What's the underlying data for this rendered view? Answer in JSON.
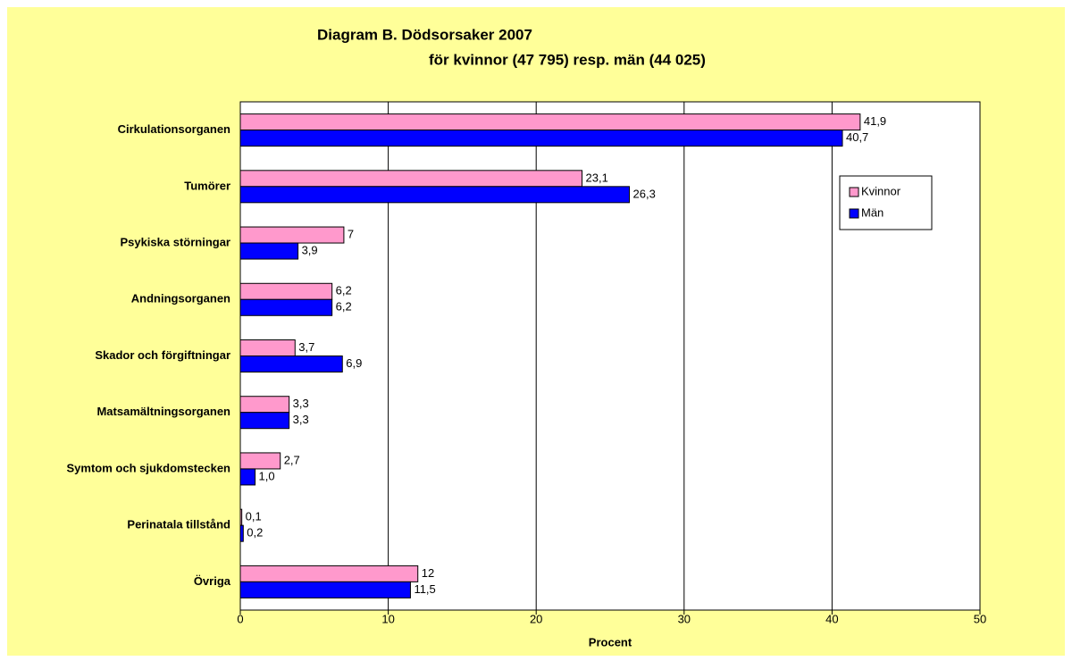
{
  "chart_data": {
    "type": "hbar",
    "title": "Diagram B.  Dödsorsaker 2007",
    "subtitle": "för kvinnor (47 795) resp. män (44 025)",
    "x_label": "Procent",
    "categories": [
      "Cirkulationsorganen",
      "Tumörer",
      "Psykiska störningar",
      "Andningsorganen",
      "Skador och förgiftningar",
      "Matsamältningsorganen",
      "Symtom och sjukdomstecken",
      "Perinatala tillstånd",
      "Övriga"
    ],
    "series": [
      {
        "name": "Kvinnor",
        "color": "#ff99cc",
        "values": [
          41.9,
          23.1,
          7,
          6.2,
          3.7,
          3.3,
          2.7,
          0.1,
          12
        ],
        "value_labels": [
          "41,9",
          "23,1",
          "7",
          "6,2",
          "3,7",
          "3,3",
          "2,7",
          "0,1",
          "12"
        ]
      },
      {
        "name": "Män",
        "color": "#0000ff",
        "values": [
          40.7,
          26.3,
          3.9,
          6.2,
          6.9,
          3.3,
          1.0,
          0.2,
          11.5
        ],
        "value_labels": [
          "40,7",
          "26,3",
          "3,9",
          "6,2",
          "6,9",
          "3,3",
          "1,0",
          "0,2",
          "11,5"
        ]
      }
    ],
    "xlim": [
      0,
      50
    ],
    "xticks": [
      0,
      10,
      20,
      30,
      40,
      50
    ],
    "grid": true
  }
}
